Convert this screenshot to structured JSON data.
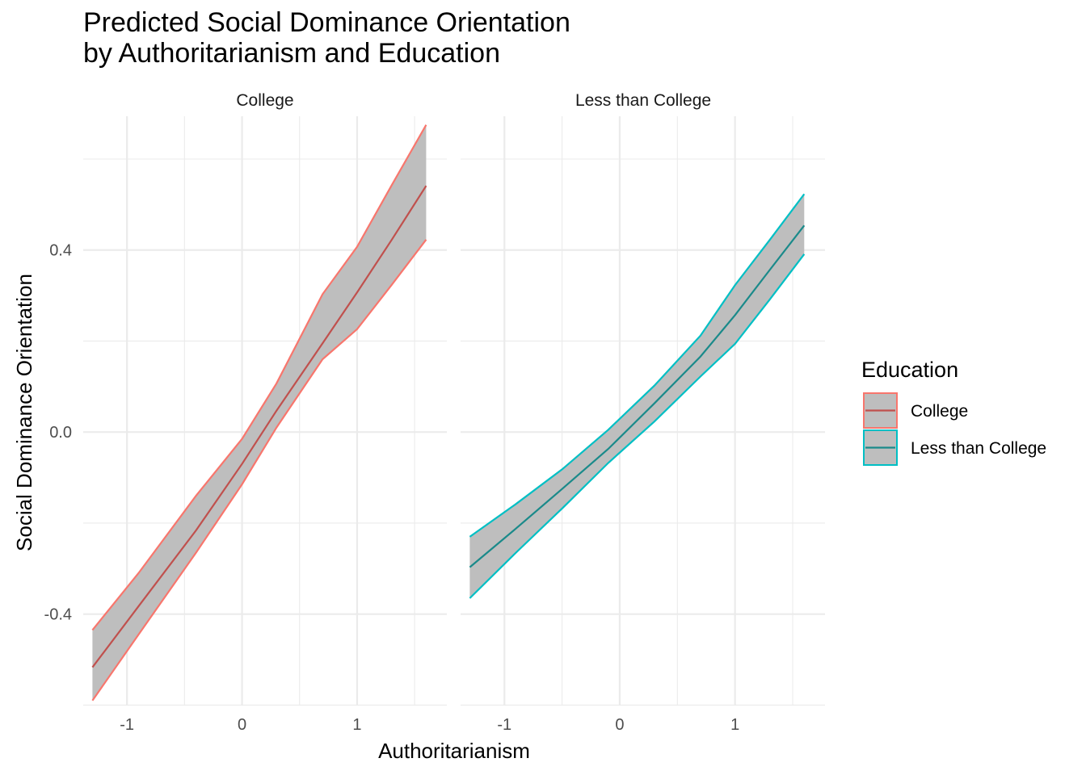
{
  "chart_data": {
    "type": "line",
    "title_lines": [
      "Predicted Social Dominance Orientation",
      "by Authoritarianism and Education"
    ],
    "xlabel": "Authoritarianism",
    "ylabel": "Social Dominance Orientation",
    "xlim": [
      -1.38,
      1.78
    ],
    "ylim": [
      -0.601,
      0.694
    ],
    "x_ticks": [
      -1,
      0,
      1
    ],
    "x_tick_labels": [
      "-1",
      "0",
      "1"
    ],
    "y_ticks": [
      -0.4,
      0.0,
      0.4
    ],
    "y_tick_labels": [
      "-0.4",
      "0.0",
      "0.4"
    ],
    "grid": true,
    "legend": {
      "title": "Education",
      "position": "right",
      "entries": [
        "College",
        "Less than College"
      ]
    },
    "ribbon_fill": "#bebebe",
    "facets": [
      {
        "label": "College",
        "series": "College",
        "edge_color": "#F8766D",
        "line_color": "#C0504D",
        "x": [
          -1.3,
          -0.9,
          -0.4,
          0.0,
          0.3,
          0.7,
          1.0,
          1.3,
          1.6
        ],
        "fit": [
          -0.517,
          -0.383,
          -0.216,
          -0.07,
          0.047,
          0.195,
          0.307,
          0.422,
          0.541
        ],
        "lower": [
          -0.59,
          -0.445,
          -0.265,
          -0.115,
          0.01,
          0.16,
          0.226,
          0.323,
          0.423
        ],
        "upper": [
          -0.435,
          -0.31,
          -0.14,
          -0.015,
          0.107,
          0.303,
          0.407,
          0.542,
          0.675
        ]
      },
      {
        "label": "Less than College",
        "series": "Less than College",
        "edge_color": "#00BFC4",
        "line_color": "#1A8A8A",
        "x": [
          -1.3,
          -0.9,
          -0.5,
          -0.1,
          0.3,
          0.7,
          1.0,
          1.3,
          1.6
        ],
        "fit": [
          -0.297,
          -0.212,
          -0.125,
          -0.037,
          0.063,
          0.166,
          0.257,
          0.356,
          0.454
        ],
        "lower": [
          -0.365,
          -0.265,
          -0.168,
          -0.068,
          0.023,
          0.122,
          0.194,
          0.291,
          0.391
        ],
        "upper": [
          -0.23,
          -0.158,
          -0.082,
          0.005,
          0.102,
          0.212,
          0.323,
          0.422,
          0.523
        ]
      }
    ]
  }
}
